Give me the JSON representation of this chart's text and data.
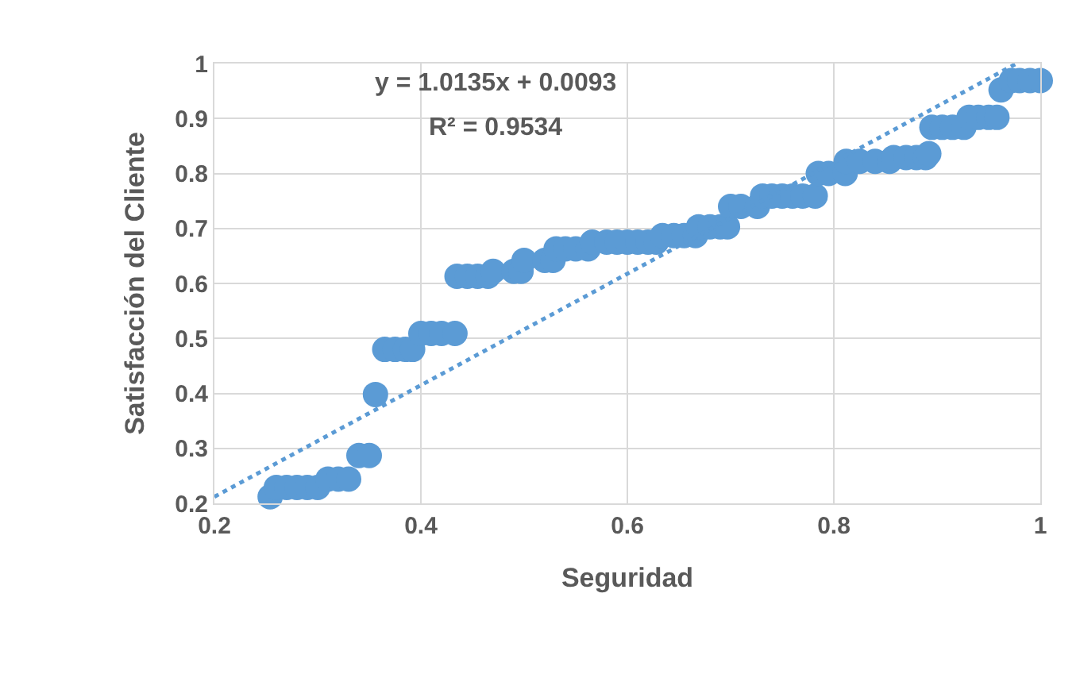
{
  "chart_data": {
    "type": "scatter",
    "xlabel": "Seguridad",
    "ylabel": "Satisfacción del Cliente",
    "annotations": [
      "y = 1.0135x + 0.0093",
      "R² = 0.9534"
    ],
    "xlim": [
      0.2,
      1
    ],
    "xticks": [
      0.2,
      0.4,
      0.6,
      0.8,
      1
    ],
    "ylim": [
      0.2,
      1
    ],
    "yticks": [
      0.2,
      0.3,
      0.4,
      0.5,
      0.6,
      0.7,
      0.8,
      0.9,
      1
    ],
    "grid": true,
    "marker": "circle",
    "series": [
      {
        "color": "#5b9bd5",
        "x": [
          0.254,
          0.26,
          0.27,
          0.28,
          0.29,
          0.3,
          0.31,
          0.32,
          0.33,
          0.34,
          0.35,
          0.356,
          0.365,
          0.375,
          0.385,
          0.392,
          0.4,
          0.41,
          0.42,
          0.433,
          0.435,
          0.445,
          0.455,
          0.465,
          0.47,
          0.49,
          0.497,
          0.5,
          0.52,
          0.528,
          0.531,
          0.54,
          0.55,
          0.562,
          0.566,
          0.58,
          0.59,
          0.6,
          0.61,
          0.62,
          0.628,
          0.634,
          0.645,
          0.655,
          0.666,
          0.669,
          0.68,
          0.69,
          0.697,
          0.7,
          0.71,
          0.726,
          0.731,
          0.74,
          0.75,
          0.76,
          0.77,
          0.782,
          0.785,
          0.795,
          0.811,
          0.812,
          0.825,
          0.84,
          0.854,
          0.858,
          0.87,
          0.88,
          0.889,
          0.892,
          0.895,
          0.905,
          0.915,
          0.926,
          0.931,
          0.94,
          0.95,
          0.958,
          0.962,
          0.972,
          0.98,
          0.99,
          1.0
        ],
        "values": [
          0.212,
          0.229,
          0.229,
          0.229,
          0.229,
          0.229,
          0.244,
          0.244,
          0.244,
          0.287,
          0.287,
          0.398,
          0.48,
          0.48,
          0.48,
          0.48,
          0.509,
          0.509,
          0.509,
          0.509,
          0.613,
          0.613,
          0.613,
          0.613,
          0.622,
          0.622,
          0.622,
          0.642,
          0.642,
          0.642,
          0.663,
          0.663,
          0.663,
          0.663,
          0.675,
          0.675,
          0.675,
          0.675,
          0.675,
          0.675,
          0.675,
          0.687,
          0.687,
          0.687,
          0.687,
          0.703,
          0.703,
          0.703,
          0.703,
          0.74,
          0.74,
          0.74,
          0.759,
          0.759,
          0.759,
          0.759,
          0.759,
          0.759,
          0.8,
          0.8,
          0.8,
          0.822,
          0.822,
          0.822,
          0.822,
          0.829,
          0.829,
          0.829,
          0.829,
          0.836,
          0.884,
          0.884,
          0.884,
          0.884,
          0.902,
          0.902,
          0.902,
          0.902,
          0.952,
          0.969,
          0.969,
          0.969,
          0.969
        ]
      },
      {
        "type": "line",
        "color": "#5b9bd5",
        "line_style": "dotted",
        "marker": "none",
        "x": [
          0.2,
          0.977
        ],
        "values": [
          0.212,
          1.0
        ]
      }
    ]
  }
}
